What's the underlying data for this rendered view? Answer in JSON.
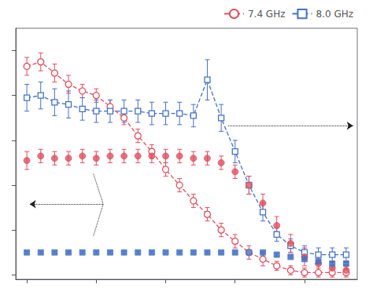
{
  "chart_data": {
    "type": "scatter",
    "x": [
      0,
      1,
      2,
      3,
      4,
      5,
      6,
      7,
      8,
      9,
      10,
      11,
      12,
      13,
      14,
      15,
      16,
      17,
      18,
      19,
      20,
      21,
      22,
      23
    ],
    "series": [
      {
        "name": "7.4 GHz",
        "color": "#e05060",
        "marker": "open_circle",
        "line_style": "dashed",
        "values": [
          0.93,
          0.95,
          0.9,
          0.85,
          0.82,
          0.8,
          0.75,
          0.7,
          0.62,
          0.55,
          0.47,
          0.4,
          0.33,
          0.27,
          0.2,
          0.15,
          0.1,
          0.07,
          0.04,
          0.02,
          0.01,
          0.01,
          0.01,
          0.01
        ],
        "errors": [
          0.04,
          0.04,
          0.04,
          0.04,
          0.03,
          0.03,
          0.03,
          0.03,
          0.03,
          0.03,
          0.03,
          0.03,
          0.03,
          0.03,
          0.03,
          0.03,
          0.03,
          0.03,
          0.02,
          0.02,
          0.02,
          0.02,
          0.02,
          0.02
        ]
      },
      {
        "name": "8.0 GHz",
        "color": "#4472c4",
        "marker": "open_square",
        "line_style": "dashed",
        "values": [
          0.79,
          0.8,
          0.77,
          0.76,
          0.74,
          0.73,
          0.73,
          0.73,
          0.73,
          0.72,
          0.72,
          0.72,
          0.71,
          0.87,
          0.7,
          0.55,
          0.4,
          0.28,
          0.18,
          0.13,
          0.1,
          0.09,
          0.09,
          0.09
        ],
        "errors": [
          0.06,
          0.06,
          0.06,
          0.06,
          0.05,
          0.05,
          0.05,
          0.05,
          0.05,
          0.05,
          0.05,
          0.05,
          0.05,
          0.09,
          0.06,
          0.05,
          0.04,
          0.04,
          0.03,
          0.03,
          0.03,
          0.03,
          0.03,
          0.03
        ]
      },
      {
        "name": "7.4 GHz",
        "color": "#e05060",
        "marker": "circle",
        "line_style": "none",
        "values": [
          0.51,
          0.53,
          0.52,
          0.52,
          0.53,
          0.52,
          0.53,
          0.53,
          0.53,
          0.53,
          0.53,
          0.53,
          0.52,
          0.52,
          0.5,
          0.46,
          0.4,
          0.32,
          0.22,
          0.14,
          0.08,
          0.05,
          0.03,
          0.02
        ],
        "errors": [
          0.04,
          0.03,
          0.03,
          0.03,
          0.03,
          0.03,
          0.03,
          0.03,
          0.03,
          0.03,
          0.03,
          0.03,
          0.03,
          0.03,
          0.03,
          0.03,
          0.04,
          0.04,
          0.04,
          0.04,
          0.04,
          0.04,
          0.03,
          0.02
        ]
      },
      {
        "name": "8.0 GHz",
        "color": "#4472c4",
        "marker": "square",
        "line_style": "none",
        "values": [
          0.1,
          0.1,
          0.1,
          0.1,
          0.1,
          0.1,
          0.1,
          0.1,
          0.1,
          0.1,
          0.1,
          0.1,
          0.1,
          0.1,
          0.1,
          0.1,
          0.1,
          0.1,
          0.09,
          0.08,
          0.07,
          0.06,
          0.05,
          0.05
        ],
        "errors": [
          0.005,
          0.005,
          0.005,
          0.005,
          0.005,
          0.005,
          0.005,
          0.005,
          0.005,
          0.005,
          0.005,
          0.005,
          0.005,
          0.005,
          0.005,
          0.005,
          0.005,
          0.005,
          0.005,
          0.005,
          0.005,
          0.005,
          0.005,
          0.005
        ]
      }
    ],
    "arrows": [
      {
        "from": [
          14.5,
          0.665
        ],
        "to": [
          23.5,
          0.665
        ],
        "color": "#202020"
      },
      {
        "from": [
          5.5,
          0.315
        ],
        "to": [
          0.2,
          0.315
        ],
        "color": "#202020"
      }
    ],
    "guide_lines": [
      {
        "from": [
          4.8,
          0.45
        ],
        "to": [
          5.5,
          0.315
        ],
        "color": "#202020"
      },
      {
        "from": [
          4.8,
          0.175
        ],
        "to": [
          5.5,
          0.315
        ],
        "color": "#202020"
      }
    ],
    "xlim": [
      -0.8,
      23.8
    ],
    "ylim": [
      -0.02,
      1.1
    ],
    "xticks": [
      0,
      5,
      10,
      15,
      20
    ],
    "yticks": [
      0,
      0.2,
      0.4,
      0.6,
      0.8,
      1.0
    ],
    "tick_labels": false,
    "grid": false,
    "legend": "upper right"
  }
}
